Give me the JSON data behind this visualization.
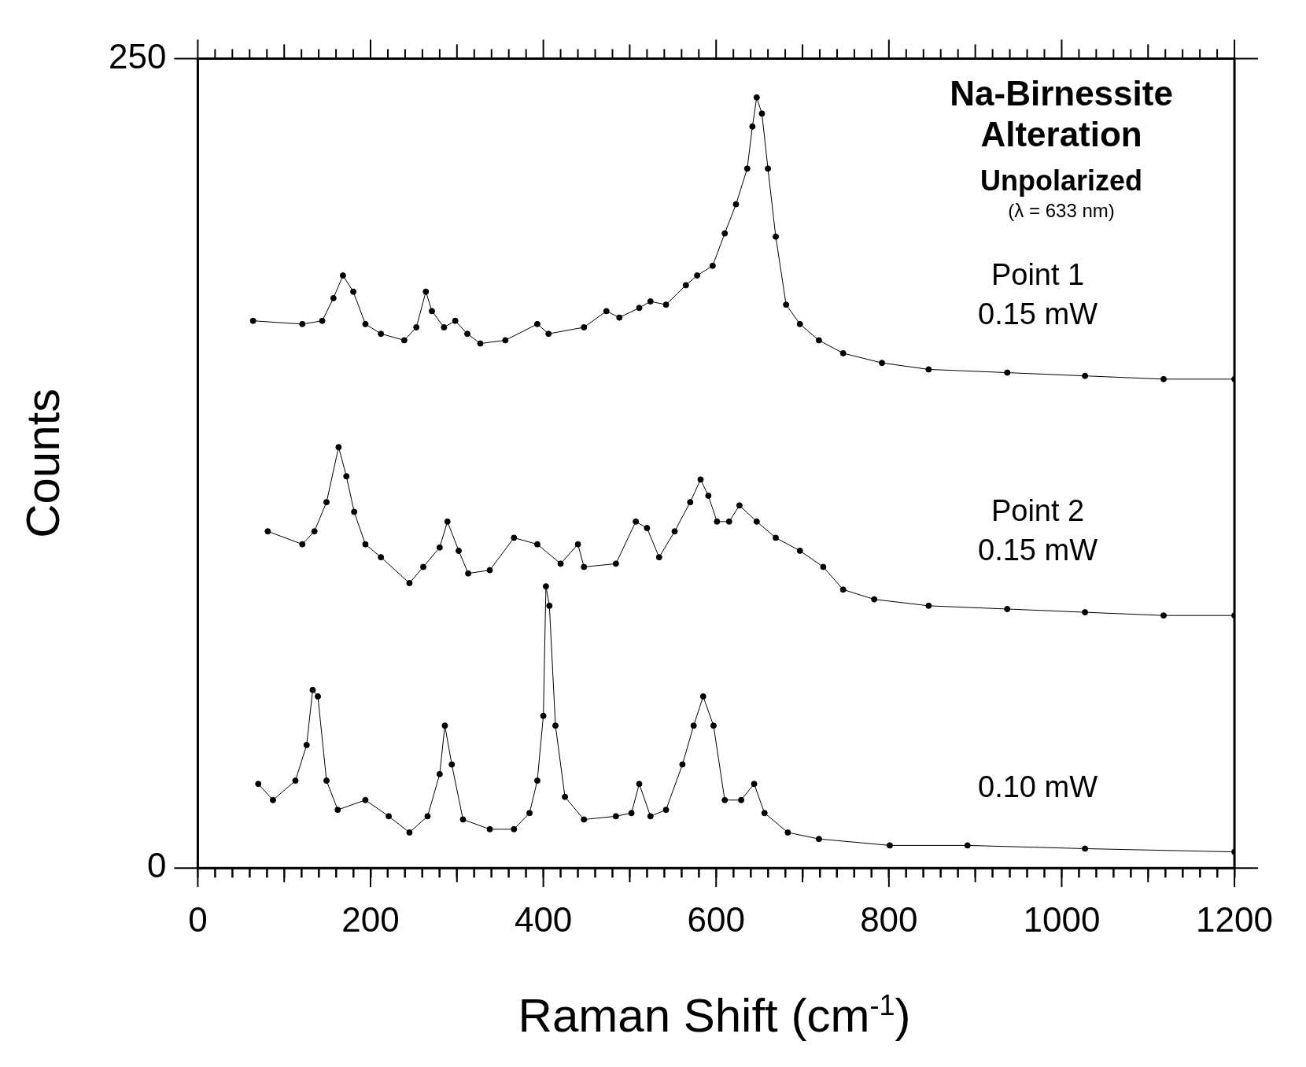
{
  "chart_data": {
    "type": "line",
    "title": "Na-Birnessite Alteration",
    "subtitle": "Unpolarized",
    "annotations": [
      "(λ = 633 nm)"
    ],
    "xlabel": "Raman Shift (cm$^{-1}$)",
    "ylabel": "Counts",
    "xlim": [
      0,
      1200
    ],
    "ylim": [
      0,
      250
    ],
    "yticks": [
      0,
      250
    ],
    "xticks": [
      0,
      {
        "value": 20,
        "label": null
      },
      {
        "value": 40,
        "label": null
      },
      {
        "value": 60,
        "label": null
      },
      {
        "value": 80,
        "label": null
      },
      {
        "value": 100,
        "label": null
      },
      {
        "value": 120,
        "label": null
      },
      {
        "value": 140,
        "label": null
      },
      {
        "value": 160,
        "label": null
      },
      {
        "value": 180,
        "label": null
      },
      200,
      {
        "value": 220,
        "label": null
      },
      {
        "value": 240,
        "label": null
      },
      {
        "value": 260,
        "label": null
      },
      {
        "value": 280,
        "label": null
      },
      {
        "value": 300,
        "label": null
      },
      {
        "value": 320,
        "label": null
      },
      {
        "value": 340,
        "label": null
      },
      {
        "value": 360,
        "label": null
      },
      {
        "value": 380,
        "label": null
      },
      400,
      {
        "value": 420,
        "label": null
      },
      {
        "value": 440,
        "label": null
      },
      {
        "value": 460,
        "label": null
      },
      {
        "value": 480,
        "label": null
      },
      {
        "value": 500,
        "label": null
      },
      {
        "value": 520,
        "label": null
      },
      {
        "value": 540,
        "label": null
      },
      {
        "value": 560,
        "label": null
      },
      {
        "value": 580,
        "label": null
      },
      600,
      {
        "value": 620,
        "label": null
      },
      {
        "value": 640,
        "label": null
      },
      {
        "value": 660,
        "label": null
      },
      {
        "value": 680,
        "label": null
      },
      {
        "value": 700,
        "label": null
      },
      {
        "value": 720,
        "label": null
      },
      {
        "value": 740,
        "label": null
      },
      {
        "value": 760,
        "label": null
      },
      {
        "value": 780,
        "label": null
      },
      800,
      {
        "value": 820,
        "label": null
      },
      {
        "value": 840,
        "label": null
      },
      {
        "value": 860,
        "label": null
      },
      {
        "value": 880,
        "label": null
      },
      {
        "value": 900,
        "label": null
      },
      {
        "value": 920,
        "label": null
      },
      {
        "value": 940,
        "label": null
      },
      {
        "value": 960,
        "label": null
      },
      {
        "value": 980,
        "label": null
      },
      1000,
      {
        "value": 1020,
        "label": null
      },
      {
        "value": 1040,
        "label": null
      },
      {
        "value": 1060,
        "label": null
      },
      {
        "value": 1080,
        "label": null
      },
      {
        "value": 1100,
        "label": null
      },
      {
        "value": 1120,
        "label": null
      },
      {
        "value": 1140,
        "label": null
      },
      {
        "value": 1160,
        "label": null
      },
      {
        "value": 1180,
        "label": null
      },
      1200
    ],
    "grid": false,
    "legend": false,
    "marker": "circle",
    "line_style": "solid",
    "series": [
      {
        "name": "Point 1 0.15 mW",
        "color": "#000000",
        "x": [
          64,
          121,
          144,
          157,
          168,
          180,
          194,
          212,
          239,
          253,
          264,
          271,
          285,
          298,
          312,
          327,
          356,
          393,
          406,
          447,
          473,
          488,
          511,
          524,
          542,
          565,
          578,
          596,
          610,
          623,
          636,
          642,
          647,
          653,
          660,
          669,
          681,
          697,
          719,
          747,
          792,
          846,
          937,
          1027,
          1118,
          1200
        ],
        "values": [
          169,
          168,
          169,
          176,
          183,
          178,
          168,
          165,
          163,
          167,
          178,
          172,
          167,
          169,
          165,
          162,
          163,
          168,
          165,
          167,
          172,
          170,
          173,
          175,
          174,
          180,
          183,
          186,
          196,
          205,
          216,
          229,
          238,
          233,
          216,
          195,
          174,
          168,
          163,
          159,
          156,
          154,
          153,
          152,
          151,
          151
        ]
      },
      {
        "name": "Point 2 0.15 mW",
        "color": "#000000",
        "x": [
          81,
          121,
          135,
          149,
          163,
          172,
          181,
          194,
          212,
          245,
          261,
          280,
          289,
          302,
          313,
          338,
          366,
          393,
          420,
          440,
          447,
          484,
          507,
          520,
          534,
          552,
          570,
          582,
          591,
          601,
          615,
          627,
          647,
          669,
          697,
          724,
          747,
          783,
          846,
          937,
          1027,
          1118,
          1200
        ],
        "values": [
          104,
          100,
          104,
          113,
          130,
          121,
          110,
          100,
          96,
          88,
          93,
          99,
          107,
          98,
          91,
          92,
          102,
          100,
          94,
          100,
          93,
          94,
          107,
          105,
          96,
          104,
          113,
          120,
          115,
          107,
          107,
          112,
          107,
          102,
          98,
          93,
          86,
          83,
          81,
          80,
          79,
          78,
          78
        ]
      },
      {
        "name": "0.10 mW",
        "color": "#000000",
        "x": [
          70,
          87,
          113,
          126,
          133,
          139,
          149,
          162,
          194,
          221,
          245,
          266,
          280,
          286,
          294,
          307,
          338,
          366,
          384,
          393,
          400,
          403,
          407,
          414,
          425,
          447,
          484,
          502,
          511,
          524,
          542,
          561,
          574,
          585,
          597,
          610,
          629,
          644,
          656,
          683,
          719,
          801,
          891,
          1027,
          1200
        ],
        "values": [
          26,
          21,
          27,
          38,
          55,
          53,
          27,
          18,
          21,
          16,
          11,
          16,
          29,
          44,
          32,
          15,
          12,
          12,
          17,
          27,
          47,
          87,
          81,
          44,
          22,
          15,
          16,
          17,
          26,
          16,
          18,
          32,
          44,
          53,
          44,
          21,
          21,
          26,
          17,
          11,
          9,
          7,
          7,
          6,
          5
        ]
      }
    ]
  }
}
